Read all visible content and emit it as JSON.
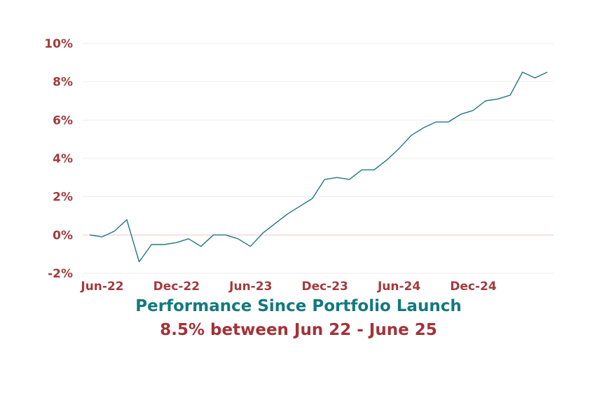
{
  "colors": {
    "line": "#1e7880",
    "axis_text": "#a23b3e",
    "title_teal": "#12797f",
    "title_red": "#a33238",
    "grid": "#eeeeee",
    "zero_line": "#e9c8cc"
  },
  "chart_data": {
    "type": "line",
    "title": "Performance Since Portfolio Launch",
    "subtitle": "8.5% between Jun 22 - June 25",
    "xlabel": "",
    "ylabel": "",
    "ylim": [
      -2,
      10
    ],
    "y_ticks": [
      -2,
      0,
      2,
      4,
      6,
      8,
      10
    ],
    "y_tick_labels": [
      "-2%",
      "0%",
      "2%",
      "4%",
      "6%",
      "8%",
      "10%"
    ],
    "x_tick_labels": [
      {
        "label": "Jun-22",
        "index": 0
      },
      {
        "label": "Dec-22",
        "index": 6
      },
      {
        "label": "Jun-23",
        "index": 12
      },
      {
        "label": "Dec-23",
        "index": 18
      },
      {
        "label": "Jun-24",
        "index": 24
      },
      {
        "label": "Dec-24",
        "index": 30
      }
    ],
    "grid": true,
    "series": [
      {
        "values": [
          0.0,
          -0.1,
          0.2,
          0.8,
          -1.4,
          -0.5,
          -0.5,
          -0.4,
          -0.2,
          -0.6,
          0.0,
          0.0,
          -0.2,
          -0.6,
          0.1,
          0.6,
          1.1,
          1.5,
          1.9,
          2.9,
          3.0,
          2.9,
          3.4,
          3.4,
          3.9,
          4.5,
          5.2,
          5.6,
          5.9,
          5.9,
          6.3,
          6.5,
          7.0,
          7.1,
          7.3,
          8.5,
          8.2,
          8.5
        ]
      }
    ]
  }
}
